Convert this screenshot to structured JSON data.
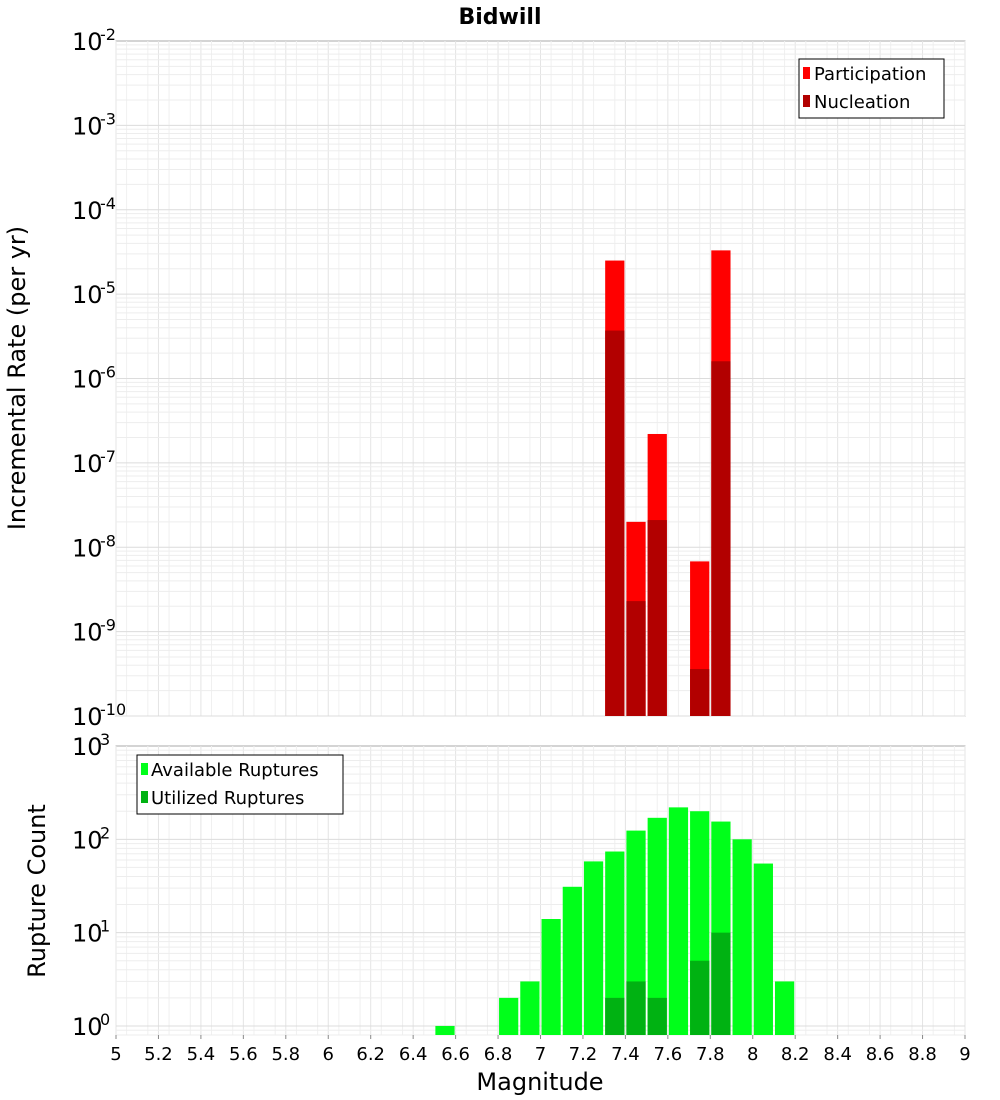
{
  "chart_data": [
    {
      "type": "bar",
      "title": "Bidwill",
      "xlabel": "",
      "ylabel": "Incremental Rate (per yr)",
      "yscale": "log",
      "ylim": [
        1e-10,
        0.01
      ],
      "xlim": [
        5,
        9
      ],
      "ytick_labels": [
        {
          "base": "10",
          "exp": "-2",
          "value": 0.01
        },
        {
          "base": "10",
          "exp": "-3",
          "value": 0.001
        },
        {
          "base": "10",
          "exp": "-4",
          "value": 0.0001
        },
        {
          "base": "10",
          "exp": "-5",
          "value": 1e-05
        },
        {
          "base": "10",
          "exp": "-6",
          "value": 1e-06
        },
        {
          "base": "10",
          "exp": "-7",
          "value": 1e-07
        },
        {
          "base": "10",
          "exp": "-8",
          "value": 1e-08
        },
        {
          "base": "10",
          "exp": "-9",
          "value": 1e-09
        },
        {
          "base": "10",
          "exp": "-10",
          "value": 1e-10
        }
      ],
      "legend": {
        "position": "top-right",
        "entries": [
          "Participation",
          "Nucleation"
        ]
      },
      "series": [
        {
          "name": "Participation",
          "color": "#ff0000",
          "x": [
            7.35,
            7.45,
            7.55,
            7.75,
            7.85
          ],
          "values": [
            2.5e-05,
            2e-08,
            2.2e-07,
            6.8e-09,
            3.3e-05
          ]
        },
        {
          "name": "Nucleation",
          "color": "#b20000",
          "x": [
            7.35,
            7.45,
            7.55,
            7.75,
            7.85
          ],
          "values": [
            3.7e-06,
            2.3e-09,
            2.1e-08,
            3.6e-10,
            1.6e-06
          ]
        }
      ]
    },
    {
      "type": "bar",
      "title": "",
      "xlabel": "Magnitude",
      "ylabel": "Rupture Count",
      "yscale": "log",
      "ylim": [
        0.8,
        1000
      ],
      "xlim": [
        5,
        9
      ],
      "ytick_labels": [
        {
          "base": "10",
          "exp": "3",
          "value": 1000
        },
        {
          "base": "10",
          "exp": "2",
          "value": 100
        },
        {
          "base": "10",
          "exp": "1",
          "value": 10
        },
        {
          "base": "10",
          "exp": "0",
          "value": 1
        }
      ],
      "xtick_labels": [
        "5",
        "5.2",
        "5.4",
        "5.6",
        "5.8",
        "6",
        "6.2",
        "6.4",
        "6.6",
        "6.8",
        "7",
        "7.2",
        "7.4",
        "7.6",
        "7.8",
        "8",
        "8.2",
        "8.4",
        "8.6",
        "8.8",
        "9"
      ],
      "legend": {
        "position": "top-left",
        "entries": [
          "Available Ruptures",
          "Utilized Ruptures"
        ]
      },
      "series": [
        {
          "name": "Available Ruptures",
          "color": "#00ff1a",
          "x": [
            6.55,
            6.85,
            6.95,
            7.05,
            7.15,
            7.25,
            7.35,
            7.45,
            7.55,
            7.65,
            7.75,
            7.85,
            7.95,
            8.05,
            8.15
          ],
          "values": [
            1,
            2,
            3,
            14,
            31,
            58,
            74,
            124,
            170,
            220,
            200,
            155,
            100,
            55,
            3
          ]
        },
        {
          "name": "Utilized Ruptures",
          "color": "#00b212",
          "x": [
            7.35,
            7.45,
            7.55,
            7.75,
            7.85
          ],
          "values": [
            2,
            3,
            2,
            5,
            10
          ]
        }
      ]
    }
  ]
}
